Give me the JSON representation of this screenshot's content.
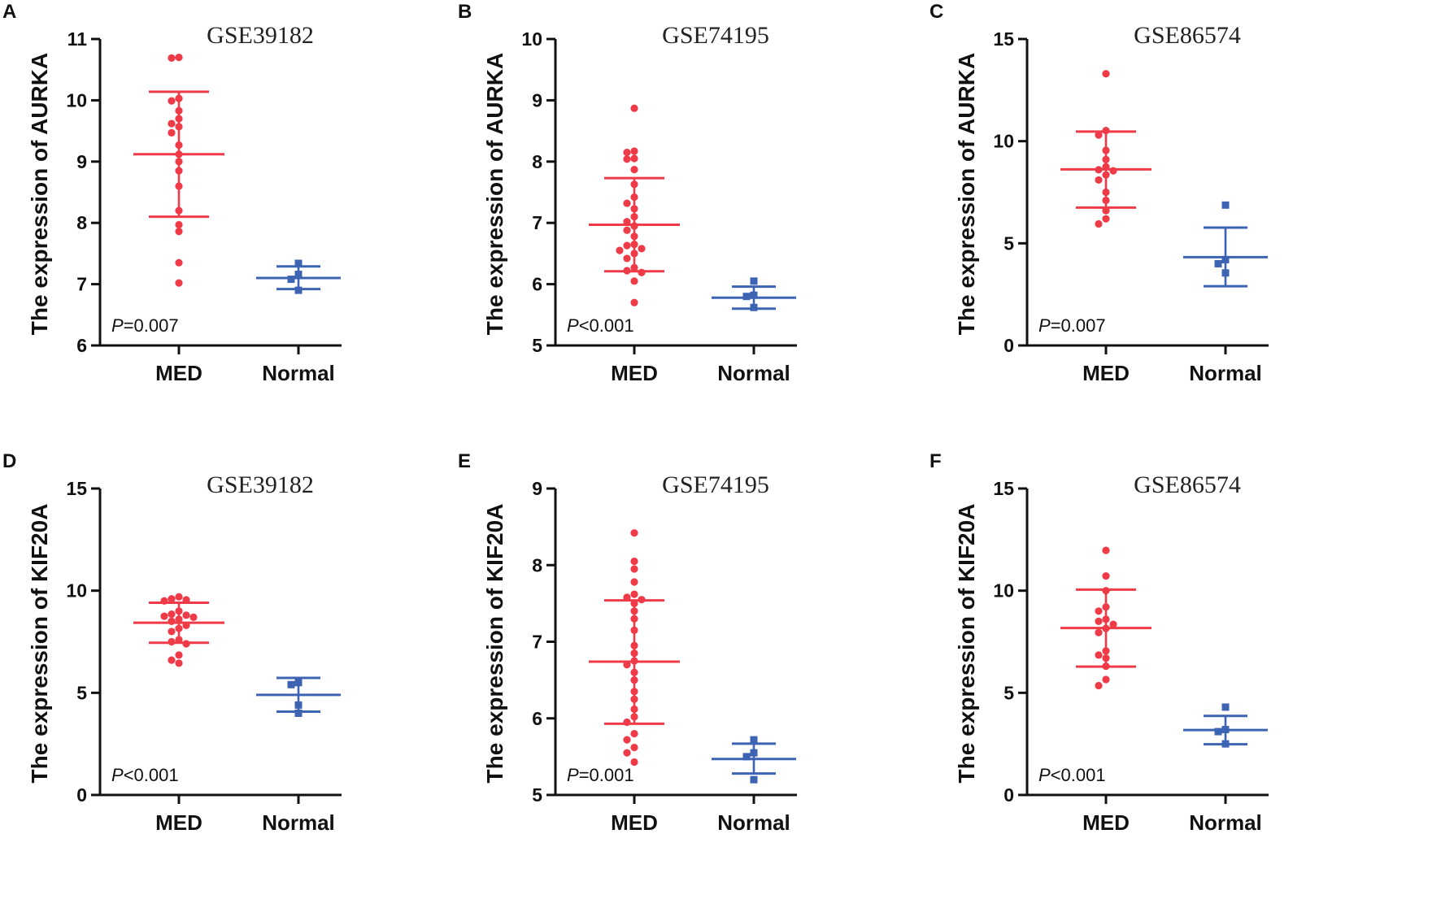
{
  "colors": {
    "med": "#ef3b48",
    "normal": "#3d63b3",
    "axis": "#111111"
  },
  "chart_data": [
    {
      "letter": "A",
      "type": "scatter",
      "title": "GSE39182",
      "ylabel": "The expression of AURKA",
      "ylim": [
        6,
        11
      ],
      "yticks": [
        6,
        7,
        8,
        9,
        10,
        11
      ],
      "categories": [
        "MED",
        "Normal"
      ],
      "p_prefix": "P",
      "p_rest": "=0.007",
      "series": [
        {
          "name": "MED",
          "mean": 9.12,
          "sd_low": 8.1,
          "sd_high": 10.14,
          "points": [
            10.7,
            10.69,
            10.03,
            9.99,
            9.83,
            9.7,
            9.62,
            9.57,
            9.47,
            9.27,
            9.12,
            9.0,
            8.85,
            8.6,
            8.2,
            7.97,
            7.86,
            7.35,
            7.02
          ]
        },
        {
          "name": "Normal",
          "mean": 7.1,
          "sd_low": 6.92,
          "sd_high": 7.29,
          "points": [
            7.34,
            7.16,
            7.08,
            6.9
          ]
        }
      ]
    },
    {
      "letter": "B",
      "type": "scatter",
      "title": "GSE74195",
      "ylabel": "The expression of AURKA",
      "ylim": [
        5,
        10
      ],
      "yticks": [
        5,
        6,
        7,
        8,
        9,
        10
      ],
      "categories": [
        "MED",
        "Normal"
      ],
      "p_prefix": "P",
      "p_rest": "<0.001",
      "series": [
        {
          "name": "MED",
          "mean": 6.97,
          "sd_low": 6.21,
          "sd_high": 7.73,
          "points": [
            8.87,
            8.17,
            8.15,
            8.05,
            8.04,
            7.87,
            7.63,
            7.42,
            7.32,
            7.23,
            7.1,
            7.02,
            6.95,
            6.88,
            6.78,
            6.65,
            6.63,
            6.58,
            6.55,
            6.5,
            6.42,
            6.27,
            6.22,
            6.19,
            6.05,
            5.7
          ]
        },
        {
          "name": "Normal",
          "mean": 5.78,
          "sd_low": 5.6,
          "sd_high": 5.96,
          "points": [
            6.05,
            5.82,
            5.8,
            5.62
          ]
        }
      ]
    },
    {
      "letter": "C",
      "type": "scatter",
      "title": "GSE86574",
      "ylabel": "The expression of AURKA",
      "ylim": [
        0,
        15
      ],
      "yticks": [
        0,
        5,
        10,
        15
      ],
      "categories": [
        "MED",
        "Normal"
      ],
      "p_prefix": "P",
      "p_rest": "=0.007",
      "series": [
        {
          "name": "MED",
          "mean": 8.62,
          "sd_low": 6.75,
          "sd_high": 10.47,
          "points": [
            13.3,
            10.52,
            10.3,
            9.55,
            9.1,
            8.75,
            8.6,
            8.55,
            8.35,
            8.1,
            7.5,
            7.1,
            6.6,
            6.2,
            5.95
          ]
        },
        {
          "name": "Normal",
          "mean": 4.32,
          "sd_low": 2.9,
          "sd_high": 5.77,
          "points": [
            6.87,
            4.2,
            4.0,
            3.55
          ]
        }
      ]
    },
    {
      "letter": "D",
      "type": "scatter",
      "title": "GSE39182",
      "ylabel": "The expression of KIF20A",
      "ylim": [
        0,
        15
      ],
      "yticks": [
        0,
        5,
        10,
        15
      ],
      "categories": [
        "MED",
        "Normal"
      ],
      "p_prefix": "P",
      "p_rest": "<0.001",
      "series": [
        {
          "name": "MED",
          "mean": 8.43,
          "sd_low": 7.45,
          "sd_high": 9.41,
          "points": [
            9.7,
            9.6,
            9.55,
            9.5,
            9.0,
            8.85,
            8.8,
            8.75,
            8.7,
            8.6,
            8.5,
            8.3,
            8.15,
            8.0,
            7.6,
            7.5,
            7.4,
            6.85,
            6.6,
            6.45
          ]
        },
        {
          "name": "Normal",
          "mean": 4.9,
          "sd_low": 4.08,
          "sd_high": 5.73,
          "points": [
            5.5,
            5.4,
            4.4,
            4.0
          ]
        }
      ]
    },
    {
      "letter": "E",
      "type": "scatter",
      "title": "GSE74195",
      "ylabel": "The expression of KIF20A",
      "ylim": [
        5,
        9
      ],
      "yticks": [
        5,
        6,
        7,
        8,
        9
      ],
      "categories": [
        "MED",
        "Normal"
      ],
      "p_prefix": "P",
      "p_rest": "=0.001",
      "series": [
        {
          "name": "MED",
          "mean": 6.74,
          "sd_low": 5.93,
          "sd_high": 7.54,
          "points": [
            8.42,
            8.05,
            7.95,
            7.78,
            7.62,
            7.58,
            7.55,
            7.5,
            7.4,
            7.3,
            7.15,
            6.95,
            6.85,
            6.75,
            6.7,
            6.6,
            6.5,
            6.35,
            6.25,
            6.12,
            6.02,
            5.95,
            5.8,
            5.72,
            5.62,
            5.55,
            5.43
          ]
        },
        {
          "name": "Normal",
          "mean": 5.47,
          "sd_low": 5.28,
          "sd_high": 5.67,
          "points": [
            5.72,
            5.55,
            5.5,
            5.2
          ]
        }
      ]
    },
    {
      "letter": "F",
      "type": "scatter",
      "title": "GSE86574",
      "ylabel": "The expression of KIF20A",
      "ylim": [
        0,
        15
      ],
      "yticks": [
        0,
        5,
        10,
        15
      ],
      "categories": [
        "MED",
        "Normal"
      ],
      "p_prefix": "P",
      "p_rest": "<0.001",
      "series": [
        {
          "name": "MED",
          "mean": 8.17,
          "sd_low": 6.28,
          "sd_high": 10.05,
          "points": [
            11.97,
            10.72,
            10.0,
            9.2,
            9.0,
            8.6,
            8.5,
            8.35,
            8.15,
            7.95,
            7.05,
            6.85,
            6.7,
            6.3,
            5.65,
            5.35
          ]
        },
        {
          "name": "Normal",
          "mean": 3.18,
          "sd_low": 2.48,
          "sd_high": 3.87,
          "points": [
            4.3,
            3.2,
            3.1,
            2.5
          ]
        }
      ]
    }
  ]
}
